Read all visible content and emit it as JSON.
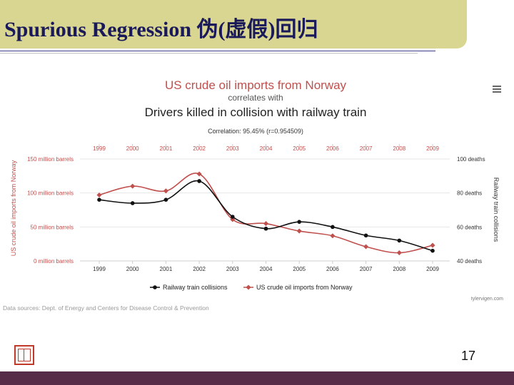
{
  "slide": {
    "title": "Spurious Regression 伪(虚假)回归",
    "page_number": "17",
    "colors": {
      "title_band": "#d8d690",
      "title_text": "#1a1a5a",
      "footer_band": "#572c48"
    }
  },
  "chart_data": {
    "type": "line",
    "title": "US crude oil imports from Norway",
    "subtitle": "correlates with",
    "title2": "Drivers killed in collision with railway train",
    "correlation": "Correlation: 95.45% (r=0.954509)",
    "categories": [
      "1999",
      "2000",
      "2001",
      "2002",
      "2003",
      "2004",
      "2005",
      "2006",
      "2007",
      "2008",
      "2009"
    ],
    "y_left": {
      "label": "US crude oil imports from Norway",
      "ticks": [
        0,
        50,
        100,
        150
      ],
      "tick_labels": [
        "0 million barrels",
        "50 million barrels",
        "100 million barrels",
        "150 million barrels"
      ],
      "range": [
        0,
        150
      ]
    },
    "y_right": {
      "label": "Railway train collisions",
      "ticks": [
        40,
        60,
        80,
        100
      ],
      "tick_labels": [
        "40 deaths",
        "60 deaths",
        "80 deaths",
        "100 deaths"
      ],
      "range": [
        40,
        100
      ]
    },
    "series": [
      {
        "name": "Railway train collisions",
        "axis": "right",
        "color": "#111111",
        "values": [
          76,
          74,
          76,
          87,
          66,
          59,
          63,
          60,
          55,
          52,
          46
        ]
      },
      {
        "name": "US crude oil imports from Norway",
        "axis": "left",
        "color": "#c0504d",
        "values": [
          97,
          110,
          103,
          128,
          61,
          55,
          44,
          37,
          21,
          12,
          23
        ]
      }
    ],
    "legend_placement": "bottom",
    "grid": true,
    "watermark": "tylervigen.com",
    "source": "Data sources: Dept. of Energy and Centers for Disease Control & Prevention",
    "menu_icon": "hamburger-menu-icon"
  }
}
